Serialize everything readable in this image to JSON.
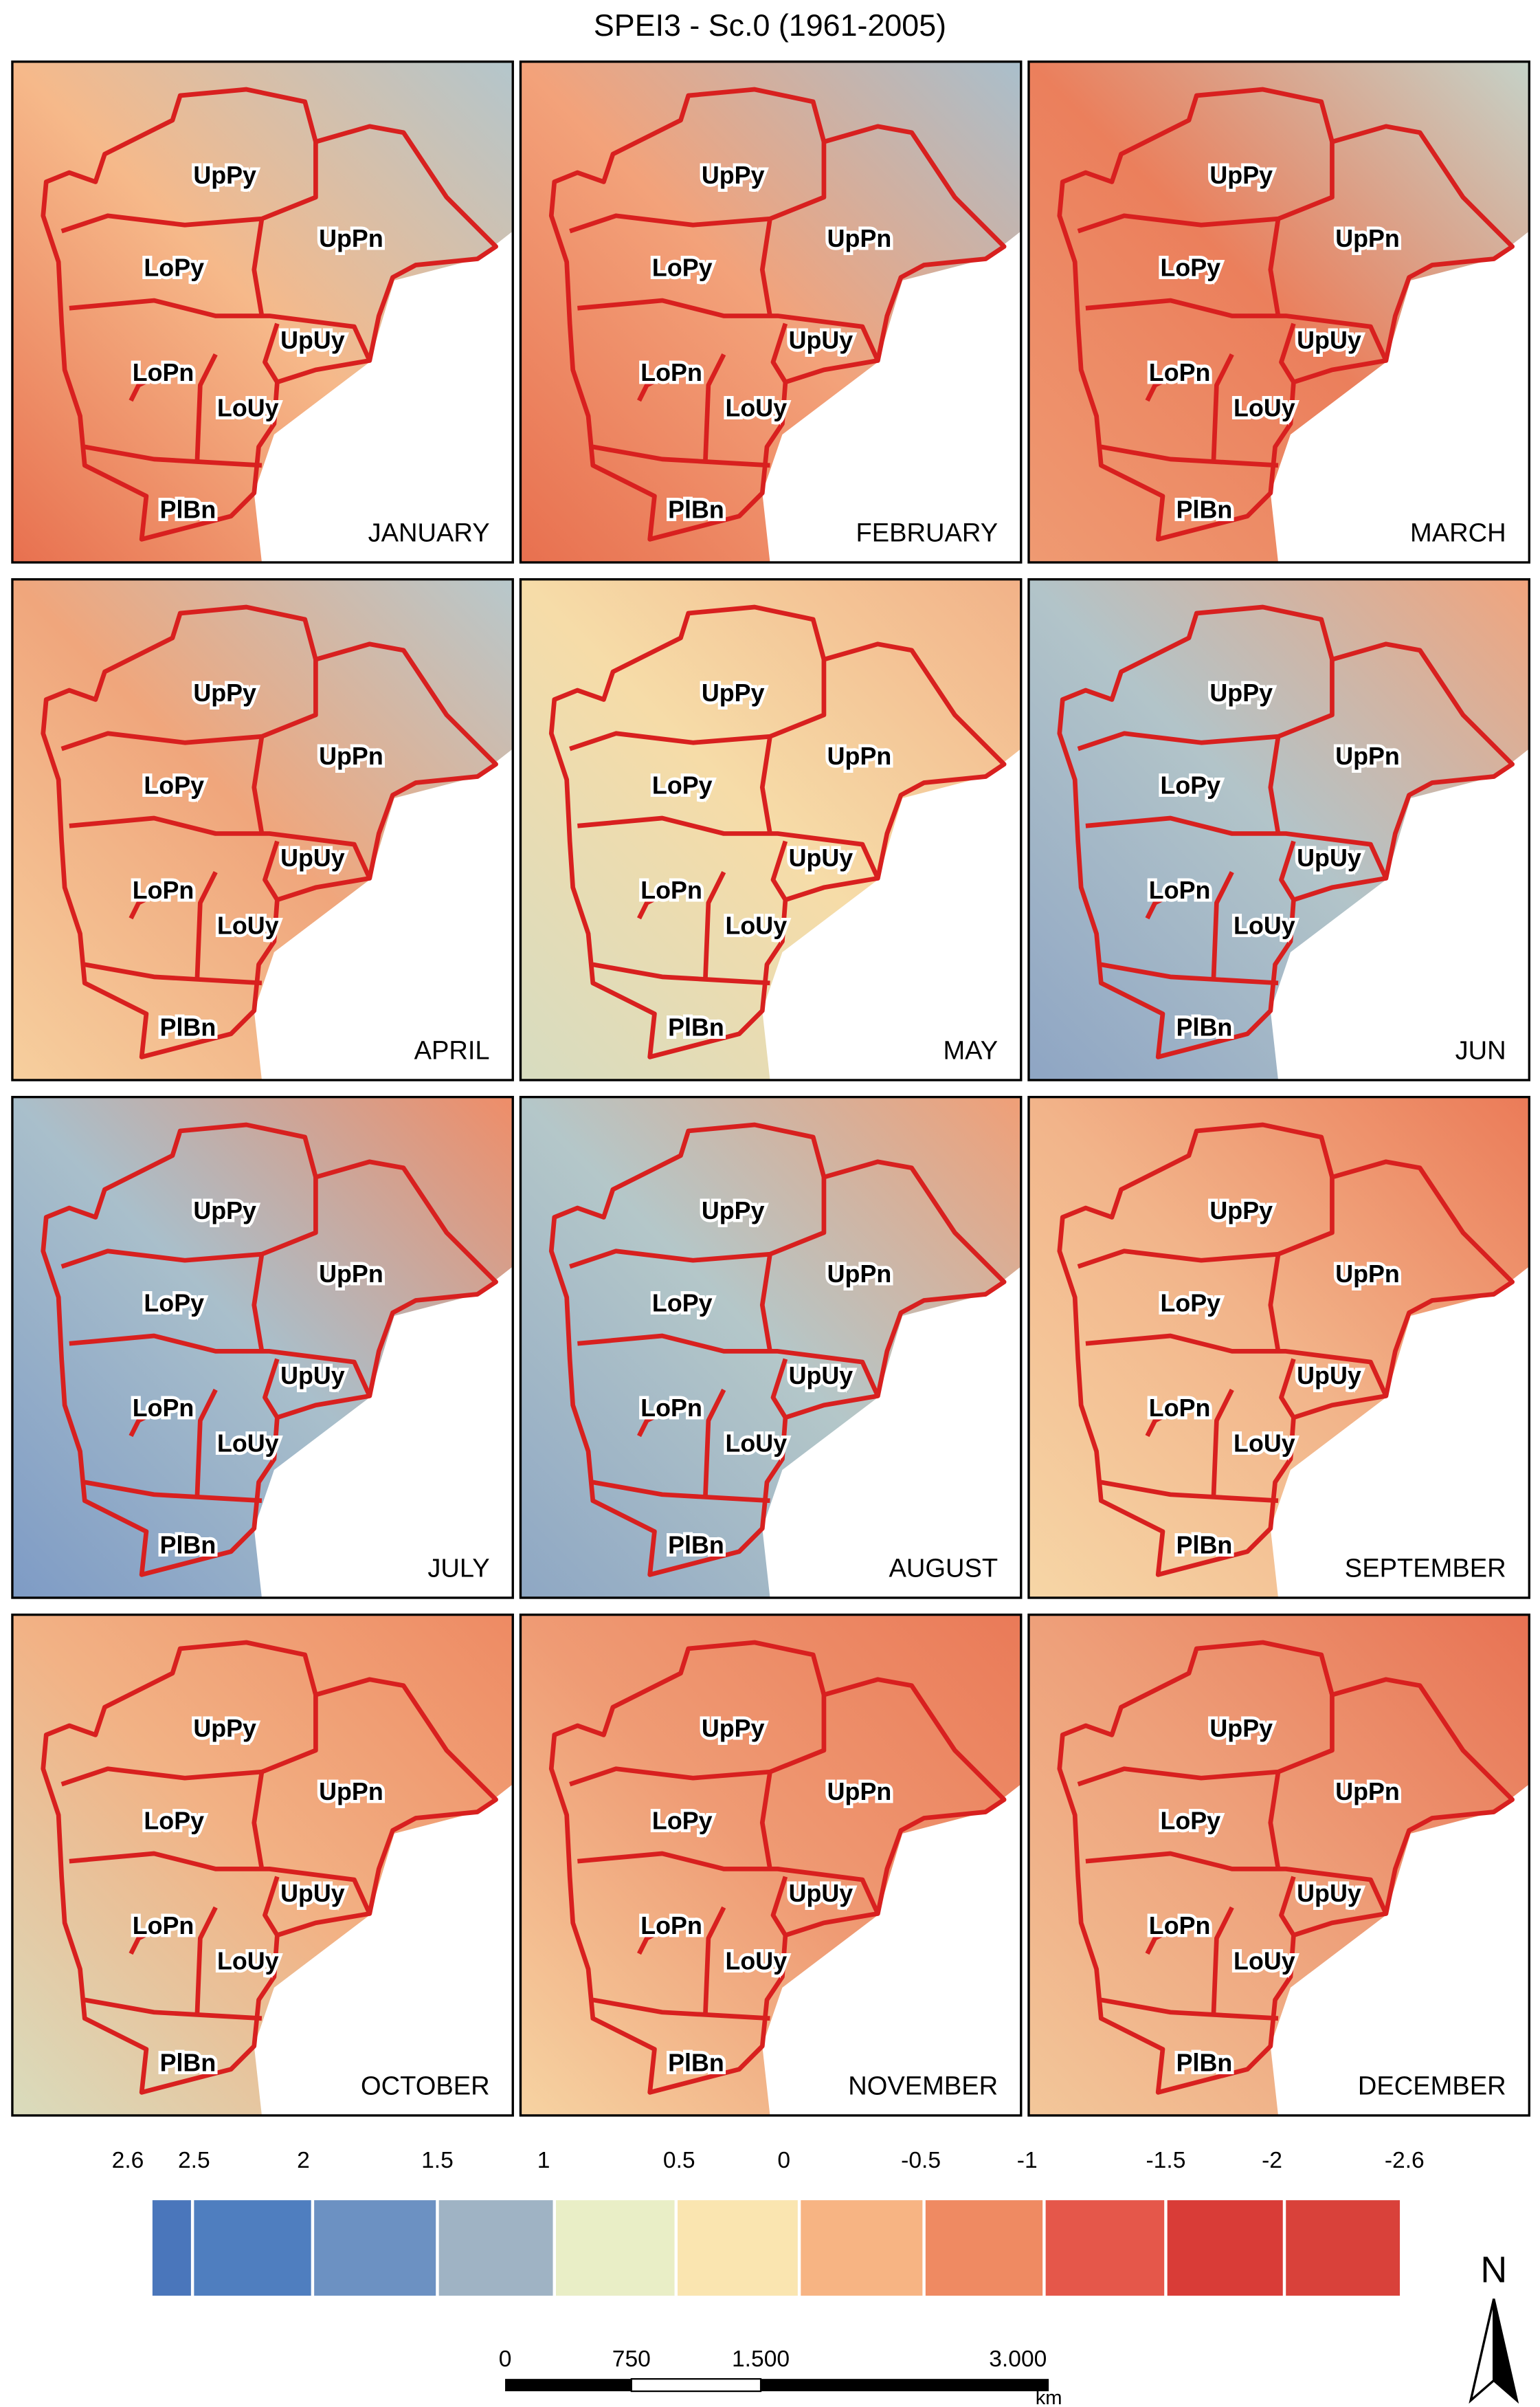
{
  "title": "SPEI3 - Sc.0 (1961-2005)",
  "regions": [
    "UpPy",
    "UpPn",
    "LoPy",
    "UpUy",
    "LoPn",
    "LoUy",
    "PlBn"
  ],
  "panels": [
    {
      "month": "JANUARY",
      "colors": [
        "#e8704f",
        "#f6b98a",
        "#b3c6cc"
      ]
    },
    {
      "month": "FEBRUARY",
      "colors": [
        "#e8704f",
        "#f3a27a",
        "#a9bfcc"
      ]
    },
    {
      "month": "MARCH",
      "colors": [
        "#ef9a72",
        "#eb7f5c",
        "#c5d2c8"
      ]
    },
    {
      "month": "APRIL",
      "colors": [
        "#f6cf9e",
        "#f0a67c",
        "#b7c8cc"
      ]
    },
    {
      "month": "MAY",
      "colors": [
        "#d7dcc0",
        "#f6dca8",
        "#f2b288"
      ]
    },
    {
      "month": "JUN",
      "colors": [
        "#8ea5c4",
        "#b2c4c9",
        "#f1a47d"
      ]
    },
    {
      "month": "JULY",
      "colors": [
        "#7e9bc5",
        "#a9bfcb",
        "#ef8d68"
      ]
    },
    {
      "month": "AUGUST",
      "colors": [
        "#8ea7c4",
        "#b4c7c9",
        "#f09f77"
      ]
    },
    {
      "month": "SEPTEMBER",
      "colors": [
        "#f6d6a6",
        "#f2b48a",
        "#eb7b58"
      ]
    },
    {
      "month": "OCTOBER",
      "colors": [
        "#d9dcbd",
        "#f2b285",
        "#ee8a63"
      ]
    },
    {
      "month": "NOVEMBER",
      "colors": [
        "#f6d3a2",
        "#ef9b74",
        "#ea7a58"
      ]
    },
    {
      "month": "DECEMBER",
      "colors": [
        "#f3c79a",
        "#eea07a",
        "#e87253"
      ]
    }
  ],
  "legend": {
    "labels": [
      "2.6",
      "2.5",
      "2",
      "1.5",
      "1",
      "0.5",
      "0",
      "-0.5",
      "-1",
      "-1.5",
      "-2",
      "-2.6"
    ],
    "colors": [
      "#4a76bb",
      "#4f7ebf",
      "#6c91c2",
      "#9fb3c4",
      "#e9eec6",
      "#fae5b0",
      "#f7b483",
      "#ef8a62",
      "#e5574a",
      "#d93c37",
      "#d9413a"
    ]
  },
  "scale_bar": {
    "labels": [
      "0",
      "750",
      "1.500",
      "3.000"
    ],
    "unit": "km"
  },
  "north": "N"
}
